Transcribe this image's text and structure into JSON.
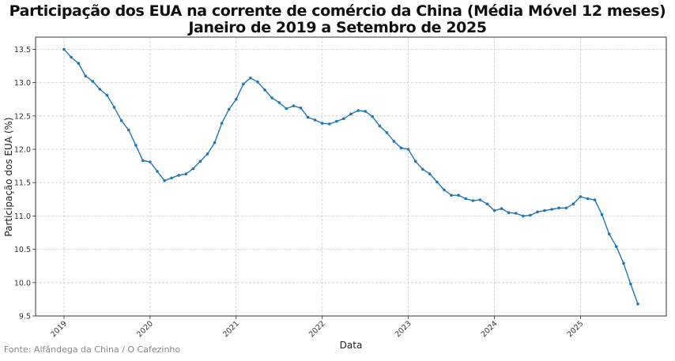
{
  "title_line1": "Participação dos EUA na corrente de comércio da China (Média Móvel 12 meses)",
  "title_line2": "Janeiro de 2019 a Setembro de 2025",
  "source": "Fonte: Alfândega da China / O Cafezinho",
  "colors": {
    "line": "#1f77b4",
    "grid": "#cccccc",
    "axis": "#333333"
  },
  "chart_data": {
    "type": "line",
    "title": "Participação dos EUA na corrente de comércio da China (Média Móvel 12 meses) — Janeiro de 2019 a Setembro de 2025",
    "xlabel": "Data",
    "ylabel": "Participação dos EUA (%)",
    "ylim": [
      9.5,
      13.65
    ],
    "yticks": [
      "9.5",
      "10.0",
      "10.5",
      "11.0",
      "11.5",
      "12.0",
      "12.5",
      "13.0",
      "13.5"
    ],
    "xticks": [
      "2019",
      "2020",
      "2021",
      "2022",
      "2023",
      "2024",
      "2025"
    ],
    "grid": true,
    "legend": null,
    "x_start": "2019-01",
    "x_end": "2025-09",
    "frequency": "monthly",
    "series": [
      {
        "name": "Participação dos EUA (%)",
        "values": [
          13.5,
          13.38,
          13.29,
          13.1,
          13.02,
          12.9,
          12.81,
          12.63,
          12.43,
          12.29,
          12.06,
          11.83,
          11.81,
          11.67,
          11.53,
          11.57,
          11.61,
          11.63,
          11.71,
          11.82,
          11.93,
          12.1,
          12.39,
          12.6,
          12.75,
          12.98,
          13.07,
          13.01,
          12.89,
          12.77,
          12.7,
          12.61,
          12.65,
          12.62,
          12.48,
          12.44,
          12.39,
          12.38,
          12.42,
          12.46,
          12.53,
          12.58,
          12.57,
          12.49,
          12.35,
          12.25,
          12.12,
          12.02,
          12.0,
          11.82,
          11.7,
          11.63,
          11.51,
          11.39,
          11.31,
          11.31,
          11.26,
          11.23,
          11.24,
          11.18,
          11.08,
          11.11,
          11.05,
          11.04,
          11.0,
          11.01,
          11.06,
          11.08,
          11.1,
          11.12,
          11.12,
          11.18,
          11.29,
          11.26,
          11.24,
          11.02,
          10.73,
          10.54,
          10.29,
          9.98,
          9.68
        ]
      }
    ]
  }
}
